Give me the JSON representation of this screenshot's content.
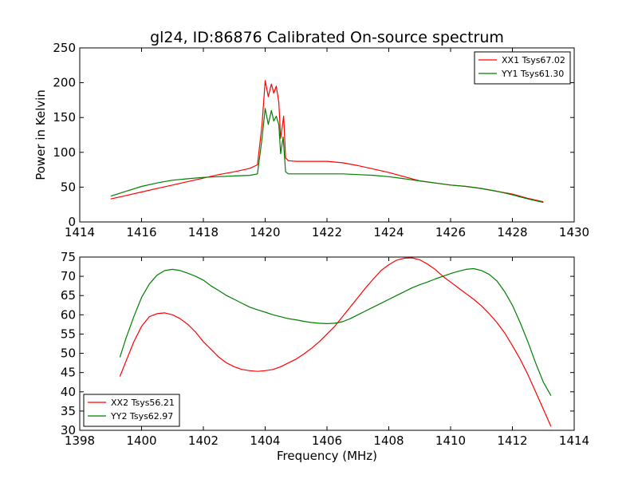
{
  "figure": {
    "title": "gl24, ID:86876 Calibrated On-source spectrum"
  },
  "chart_data": [
    {
      "type": "line",
      "title": "gl24, ID:86876 Calibrated On-source spectrum",
      "xlabel": "",
      "ylabel": "Power in Kelvin",
      "xlim": [
        1414,
        1430
      ],
      "ylim": [
        0,
        250
      ],
      "xticks": [
        1414,
        1416,
        1418,
        1420,
        1422,
        1424,
        1426,
        1428,
        1430
      ],
      "yticks": [
        0,
        50,
        100,
        150,
        200,
        250
      ],
      "grid": false,
      "legend_position": "top-right",
      "series": [
        {
          "name": "XX1 Tsys67.02",
          "color": "#ff0000",
          "points": [
            [
              1415.0,
              33
            ],
            [
              1415.5,
              38
            ],
            [
              1416.0,
              43
            ],
            [
              1416.5,
              48
            ],
            [
              1417.0,
              53
            ],
            [
              1417.5,
              58
            ],
            [
              1418.0,
              63
            ],
            [
              1418.5,
              68
            ],
            [
              1419.0,
              72
            ],
            [
              1419.5,
              77
            ],
            [
              1419.75,
              82
            ],
            [
              1419.9,
              140
            ],
            [
              1420.0,
              203
            ],
            [
              1420.1,
              180
            ],
            [
              1420.2,
              198
            ],
            [
              1420.28,
              185
            ],
            [
              1420.36,
              195
            ],
            [
              1420.44,
              172
            ],
            [
              1420.5,
              120
            ],
            [
              1420.6,
              152
            ],
            [
              1420.66,
              92
            ],
            [
              1420.75,
              88
            ],
            [
              1421.0,
              87
            ],
            [
              1422.0,
              87
            ],
            [
              1422.5,
              85
            ],
            [
              1423.0,
              81
            ],
            [
              1423.5,
              76
            ],
            [
              1424.0,
              71
            ],
            [
              1424.5,
              65
            ],
            [
              1425.0,
              59
            ],
            [
              1425.5,
              56
            ],
            [
              1426.0,
              53
            ],
            [
              1426.5,
              51
            ],
            [
              1427.0,
              48
            ],
            [
              1427.5,
              44
            ],
            [
              1428.0,
              40
            ],
            [
              1428.5,
              34
            ],
            [
              1429.0,
              29
            ]
          ]
        },
        {
          "name": "YY1 Tsys61.30",
          "color": "#007f00",
          "points": [
            [
              1415.0,
              37
            ],
            [
              1415.5,
              44
            ],
            [
              1416.0,
              51
            ],
            [
              1416.5,
              56
            ],
            [
              1417.0,
              60
            ],
            [
              1417.5,
              62
            ],
            [
              1418.0,
              64
            ],
            [
              1418.5,
              65
            ],
            [
              1419.0,
              66
            ],
            [
              1419.5,
              67
            ],
            [
              1419.75,
              69
            ],
            [
              1419.9,
              120
            ],
            [
              1420.0,
              163
            ],
            [
              1420.1,
              140
            ],
            [
              1420.2,
              160
            ],
            [
              1420.28,
              145
            ],
            [
              1420.36,
              152
            ],
            [
              1420.44,
              140
            ],
            [
              1420.5,
              98
            ],
            [
              1420.58,
              122
            ],
            [
              1420.66,
              72
            ],
            [
              1420.75,
              69
            ],
            [
              1421.0,
              69
            ],
            [
              1422.0,
              69
            ],
            [
              1422.5,
              69
            ],
            [
              1423.0,
              68
            ],
            [
              1423.5,
              67
            ],
            [
              1424.0,
              65
            ],
            [
              1424.5,
              62
            ],
            [
              1425.0,
              59
            ],
            [
              1425.5,
              56
            ],
            [
              1426.0,
              53
            ],
            [
              1426.5,
              51
            ],
            [
              1427.0,
              48
            ],
            [
              1427.5,
              44
            ],
            [
              1428.0,
              39
            ],
            [
              1428.5,
              33
            ],
            [
              1429.0,
              28
            ]
          ]
        }
      ]
    },
    {
      "type": "line",
      "title": "",
      "xlabel": "Frequency (MHz)",
      "ylabel": "",
      "xlim": [
        1398,
        1414
      ],
      "ylim": [
        30,
        75
      ],
      "xticks": [
        1398,
        1400,
        1402,
        1404,
        1406,
        1408,
        1410,
        1412,
        1414
      ],
      "yticks": [
        30,
        35,
        40,
        45,
        50,
        55,
        60,
        65,
        70,
        75
      ],
      "grid": false,
      "legend_position": "bottom-left",
      "series": [
        {
          "name": "XX2 Tsys56.21",
          "color": "#ff0000",
          "points": [
            [
              1399.3,
              44
            ],
            [
              1399.5,
              48
            ],
            [
              1399.75,
              53
            ],
            [
              1400.0,
              57
            ],
            [
              1400.25,
              59.5
            ],
            [
              1400.5,
              60.3
            ],
            [
              1400.75,
              60.5
            ],
            [
              1401.0,
              60
            ],
            [
              1401.25,
              59
            ],
            [
              1401.5,
              57.5
            ],
            [
              1401.75,
              55.5
            ],
            [
              1402.0,
              53
            ],
            [
              1402.25,
              51
            ],
            [
              1402.5,
              49
            ],
            [
              1402.75,
              47.5
            ],
            [
              1403.0,
              46.5
            ],
            [
              1403.25,
              45.8
            ],
            [
              1403.5,
              45.5
            ],
            [
              1403.75,
              45.3
            ],
            [
              1404.0,
              45.5
            ],
            [
              1404.25,
              45.8
            ],
            [
              1404.5,
              46.5
            ],
            [
              1404.75,
              47.5
            ],
            [
              1405.0,
              48.5
            ],
            [
              1405.25,
              49.8
            ],
            [
              1405.5,
              51.3
            ],
            [
              1405.75,
              53
            ],
            [
              1406.0,
              55
            ],
            [
              1406.25,
              57
            ],
            [
              1406.5,
              59.5
            ],
            [
              1406.75,
              62
            ],
            [
              1407.0,
              64.5
            ],
            [
              1407.25,
              67
            ],
            [
              1407.5,
              69.3
            ],
            [
              1407.75,
              71.5
            ],
            [
              1408.0,
              73
            ],
            [
              1408.25,
              74.2
            ],
            [
              1408.5,
              74.7
            ],
            [
              1408.75,
              74.8
            ],
            [
              1409.0,
              74.3
            ],
            [
              1409.25,
              73.2
            ],
            [
              1409.5,
              71.8
            ],
            [
              1409.75,
              70
            ],
            [
              1410.0,
              68.5
            ],
            [
              1410.25,
              67
            ],
            [
              1410.5,
              65.5
            ],
            [
              1410.75,
              64
            ],
            [
              1411.0,
              62.3
            ],
            [
              1411.25,
              60.3
            ],
            [
              1411.5,
              58
            ],
            [
              1411.75,
              55.3
            ],
            [
              1412.0,
              52
            ],
            [
              1412.25,
              48.5
            ],
            [
              1412.5,
              44.5
            ],
            [
              1412.75,
              40
            ],
            [
              1413.0,
              35.5
            ],
            [
              1413.25,
              31
            ]
          ]
        },
        {
          "name": "YY2 Tsys62.97",
          "color": "#007f00",
          "points": [
            [
              1399.3,
              49
            ],
            [
              1399.5,
              54
            ],
            [
              1399.75,
              59.5
            ],
            [
              1400.0,
              64.5
            ],
            [
              1400.25,
              68
            ],
            [
              1400.5,
              70.3
            ],
            [
              1400.75,
              71.5
            ],
            [
              1401.0,
              71.8
            ],
            [
              1401.25,
              71.5
            ],
            [
              1401.5,
              70.8
            ],
            [
              1401.75,
              70
            ],
            [
              1402.0,
              69
            ],
            [
              1402.25,
              67.5
            ],
            [
              1402.5,
              66.3
            ],
            [
              1402.75,
              65
            ],
            [
              1403.0,
              64
            ],
            [
              1403.25,
              63
            ],
            [
              1403.5,
              62
            ],
            [
              1403.75,
              61.3
            ],
            [
              1404.0,
              60.7
            ],
            [
              1404.25,
              60
            ],
            [
              1404.5,
              59.5
            ],
            [
              1404.75,
              59
            ],
            [
              1405.0,
              58.7
            ],
            [
              1405.25,
              58.3
            ],
            [
              1405.5,
              58
            ],
            [
              1405.75,
              57.8
            ],
            [
              1406.0,
              57.7
            ],
            [
              1406.25,
              57.8
            ],
            [
              1406.5,
              58.2
            ],
            [
              1406.75,
              59
            ],
            [
              1407.0,
              60
            ],
            [
              1407.25,
              61
            ],
            [
              1407.5,
              62
            ],
            [
              1407.75,
              63
            ],
            [
              1408.0,
              64
            ],
            [
              1408.25,
              65
            ],
            [
              1408.5,
              66
            ],
            [
              1408.75,
              67
            ],
            [
              1409.0,
              67.8
            ],
            [
              1409.25,
              68.5
            ],
            [
              1409.5,
              69.3
            ],
            [
              1409.75,
              70
            ],
            [
              1410.0,
              70.7
            ],
            [
              1410.25,
              71.3
            ],
            [
              1410.5,
              71.8
            ],
            [
              1410.75,
              72
            ],
            [
              1411.0,
              71.5
            ],
            [
              1411.25,
              70.5
            ],
            [
              1411.5,
              68.8
            ],
            [
              1411.75,
              66
            ],
            [
              1412.0,
              62.5
            ],
            [
              1412.25,
              58
            ],
            [
              1412.5,
              53
            ],
            [
              1412.75,
              47.5
            ],
            [
              1413.0,
              42.5
            ],
            [
              1413.25,
              39
            ]
          ]
        }
      ]
    }
  ]
}
